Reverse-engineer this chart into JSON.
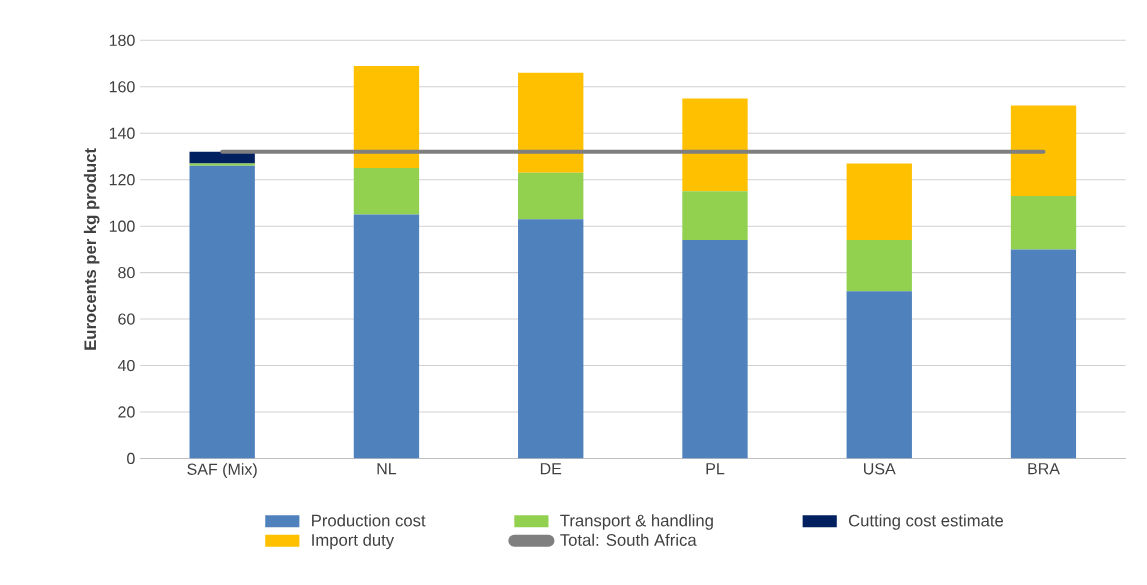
{
  "chart_data": {
    "type": "bar",
    "stacked": true,
    "ylabel": "Eurocents per kg product",
    "categories": [
      "SAF (Mix)",
      "NL",
      "DE",
      "PL",
      "USA",
      "BRA"
    ],
    "series": [
      {
        "name": "Production cost",
        "color": "#4f81bd",
        "values": [
          126,
          105,
          103,
          94,
          72,
          90
        ]
      },
      {
        "name": "Transport & handling",
        "color": "#92d050",
        "values": [
          1,
          20,
          20,
          21,
          22,
          23
        ]
      },
      {
        "name": "Cutting cost estimate",
        "color": "#002060",
        "values": [
          5,
          0,
          0,
          0,
          0,
          0
        ]
      },
      {
        "name": "Import duty",
        "color": "#ffc000",
        "values": [
          0,
          44,
          43,
          40,
          33,
          39
        ]
      },
      {
        "name": "Total: South Africa",
        "color": "#7f7f7f",
        "type": "line",
        "values": [
          132,
          132,
          132,
          132,
          132,
          132
        ]
      }
    ],
    "ylim": [
      0,
      180
    ],
    "yticks": [
      0,
      20,
      40,
      60,
      80,
      100,
      120,
      140,
      160,
      180
    ],
    "grid": "y",
    "legend": "bottom",
    "marker": "none"
  }
}
